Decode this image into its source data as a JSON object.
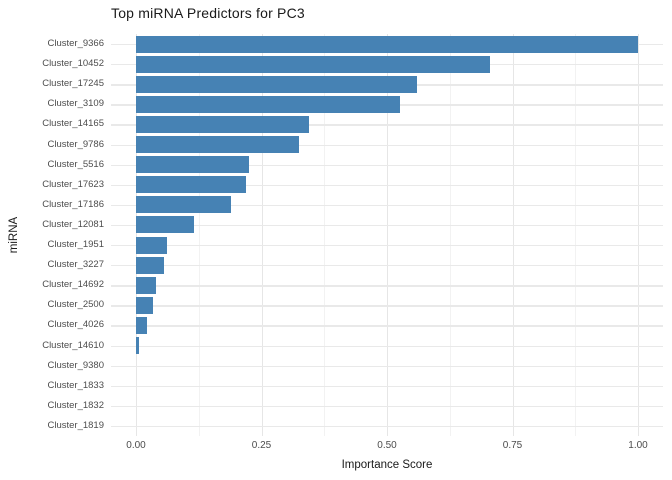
{
  "chart_data": {
    "type": "bar",
    "orientation": "horizontal",
    "title": "Top miRNA Predictors for PC3",
    "xlabel": "Importance Score",
    "ylabel": "miRNA",
    "categories": [
      "Cluster_9366",
      "Cluster_10452",
      "Cluster_17245",
      "Cluster_3109",
      "Cluster_14165",
      "Cluster_9786",
      "Cluster_5516",
      "Cluster_17623",
      "Cluster_17186",
      "Cluster_12081",
      "Cluster_1951",
      "Cluster_3227",
      "Cluster_14692",
      "Cluster_2500",
      "Cluster_4026",
      "Cluster_14610",
      "Cluster_9380",
      "Cluster_1833",
      "Cluster_1832",
      "Cluster_1819"
    ],
    "values": [
      1.0,
      0.705,
      0.56,
      0.525,
      0.345,
      0.325,
      0.225,
      0.22,
      0.19,
      0.115,
      0.062,
      0.055,
      0.04,
      0.033,
      0.022,
      0.005,
      0.0,
      0.0,
      0.0,
      0.0
    ],
    "x_tick_values": [
      0.0,
      0.25,
      0.5,
      0.75,
      1.0
    ],
    "x_tick_labels": [
      "0.00",
      "0.25",
      "0.50",
      "0.75",
      "1.00"
    ],
    "xlim": [
      0.0,
      1.0
    ],
    "minor_grid_step": 0.125,
    "grid": "vertical major+minor, horizontal major at category centers",
    "legend": "none",
    "bar_color": "#4682B4",
    "sorted": "descending"
  }
}
